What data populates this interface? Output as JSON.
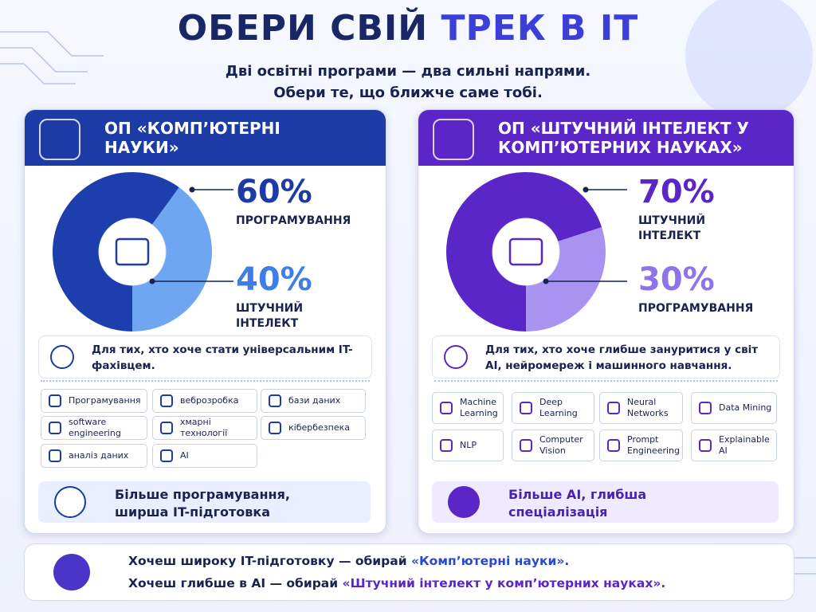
{
  "header": {
    "title_part1": "ОБЕРИ СВІЙ",
    "title_part2": "ТРЕК В IT",
    "subtitle_line1": "Дві освітні програми — два сильні напрями.",
    "subtitle_line2": "Обери те, що ближче саме тобі."
  },
  "programs": [
    {
      "title": "ОП «КОМП’ЮТЕРНІ НАУКИ»",
      "donut": [
        {
          "value": 60,
          "label": "60%",
          "name": "ПРОГРАМУВАННЯ",
          "color": "#1d3fae"
        },
        {
          "value": 40,
          "label": "40%",
          "name": "ШТУЧНИЙ ІНТЕЛЕКТ",
          "color": "#6ea6f2"
        }
      ],
      "audience": "Для тих, хто хоче стати універсальним IT-фахівцем.",
      "topics": [
        "Програмування",
        "веброзробка",
        "бази даних",
        "software engineering",
        "хмарні технології",
        "кібербезпека",
        "аналіз даних",
        "AI"
      ],
      "summary": "Більше програмування, ширша IT-підготовка"
    },
    {
      "title": "ОП «ШТУЧНИЙ ІНТЕЛЕКТ У КОМП’ЮТЕРНИХ НАУКАХ»",
      "donut": [
        {
          "value": 70,
          "label": "70%",
          "name": "ШТУЧНИЙ ІНТЕЛЕКТ",
          "color": "#5a26c8"
        },
        {
          "value": 30,
          "label": "30%",
          "name": "ПРОГРАМУВАННЯ",
          "color": "#a993f0"
        }
      ],
      "audience": "Для тих, хто хоче глибше зануритися у світ AI, нейромереж і машинного навчання.",
      "topics": [
        "Machine Learning",
        "Deep Learning",
        "Neural Networks",
        "Data Mining",
        "NLP",
        "Computer Vision",
        "Prompt Engineering",
        "Explainable AI"
      ],
      "summary": "Більше AI, глибша спеціалізація"
    }
  ],
  "footer": {
    "line1_text": "Хочеш широку IT-підготовку — обирай",
    "line1_highlight": "«Комп’ютерні науки».",
    "line2_text": "Хочеш глибше в AI — обирай",
    "line2_highlight": "«Штучний інтелект у комп’ютерних науках»."
  }
}
